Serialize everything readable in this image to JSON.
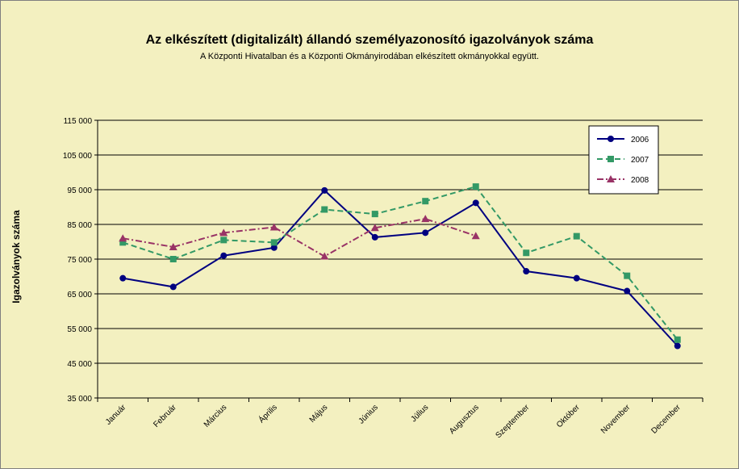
{
  "chart_data": {
    "type": "line",
    "title": "Az elkészített (digitalizált) állandó személyazonosító igazolványok száma",
    "subtitle": "A Központi Hivatalban és a Központi Okmányirodában elkészített okmányokkal együtt.",
    "ylabel": "Igazolványok száma",
    "xlabel": "",
    "categories": [
      "Január",
      "Február",
      "Március",
      "Április",
      "Május",
      "Június",
      "Július",
      "Augusztus",
      "Szeptember",
      "Október",
      "November",
      "December"
    ],
    "ylim": [
      35000,
      115000
    ],
    "yticks": [
      35000,
      45000,
      55000,
      65000,
      75000,
      85000,
      95000,
      105000,
      115000
    ],
    "ytick_labels": [
      "35 000",
      "45 000",
      "55 000",
      "65 000",
      "75 000",
      "85 000",
      "95 000",
      "105 000",
      "115 000"
    ],
    "grid": true,
    "legend_position": "top-right",
    "series": [
      {
        "name": "2006",
        "color": "#000080",
        "marker": "circle",
        "dash": "solid",
        "values": [
          69500,
          67000,
          76000,
          78300,
          94800,
          81300,
          82600,
          91200,
          71500,
          69500,
          65800,
          50000
        ]
      },
      {
        "name": "2007",
        "color": "#339966",
        "marker": "square",
        "dash": "dashed",
        "values": [
          79800,
          75000,
          80500,
          79800,
          89300,
          88000,
          91700,
          95900,
          76800,
          81600,
          70200,
          51800
        ]
      },
      {
        "name": "2008",
        "color": "#993366",
        "marker": "triangle",
        "dash": "dashdot",
        "values": [
          81000,
          78500,
          82600,
          84200,
          75800,
          84000,
          86600,
          81700,
          null,
          null,
          null,
          null
        ]
      }
    ]
  }
}
